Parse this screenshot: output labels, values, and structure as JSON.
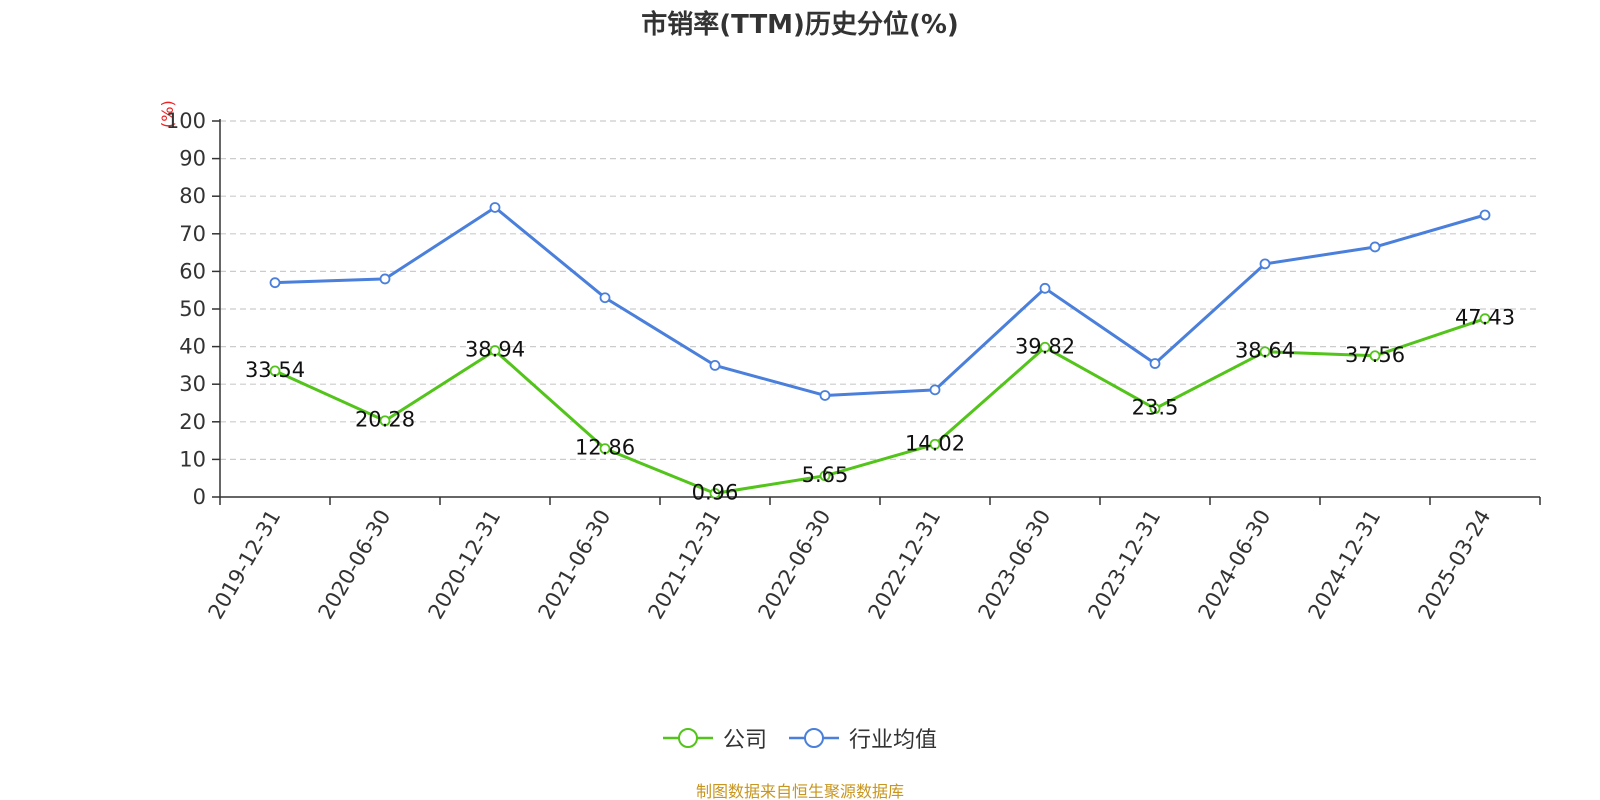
{
  "source_note": "制图数据来自恒生聚源数据库",
  "chart_data": {
    "type": "line",
    "title": "市销率(TTM)历史分位(%)",
    "y_unit": "(%)",
    "xlabel": "",
    "ylabel": "",
    "categories": [
      "2019-12-31",
      "2020-06-30",
      "2020-12-31",
      "2021-06-30",
      "2021-12-31",
      "2022-06-30",
      "2022-12-31",
      "2023-06-30",
      "2023-12-31",
      "2024-06-30",
      "2024-12-31",
      "2025-03-24"
    ],
    "y_ticks": [
      0,
      10,
      20,
      30,
      40,
      50,
      60,
      70,
      80,
      90,
      100
    ],
    "ylim": [
      0,
      100
    ],
    "grid": true,
    "legend_position": "bottom-center",
    "series": [
      {
        "name": "公司",
        "color": "#52c41a",
        "show_labels": true,
        "values": [
          33.54,
          20.28,
          38.94,
          12.86,
          0.96,
          5.65,
          14.02,
          39.82,
          23.5,
          38.64,
          37.56,
          47.43
        ]
      },
      {
        "name": "行业均值",
        "color": "#4a7fdb",
        "show_labels": false,
        "values": [
          57.0,
          58.0,
          77.0,
          53.0,
          35.0,
          27.0,
          28.5,
          55.5,
          35.5,
          62.0,
          66.5,
          75.0
        ]
      }
    ]
  }
}
